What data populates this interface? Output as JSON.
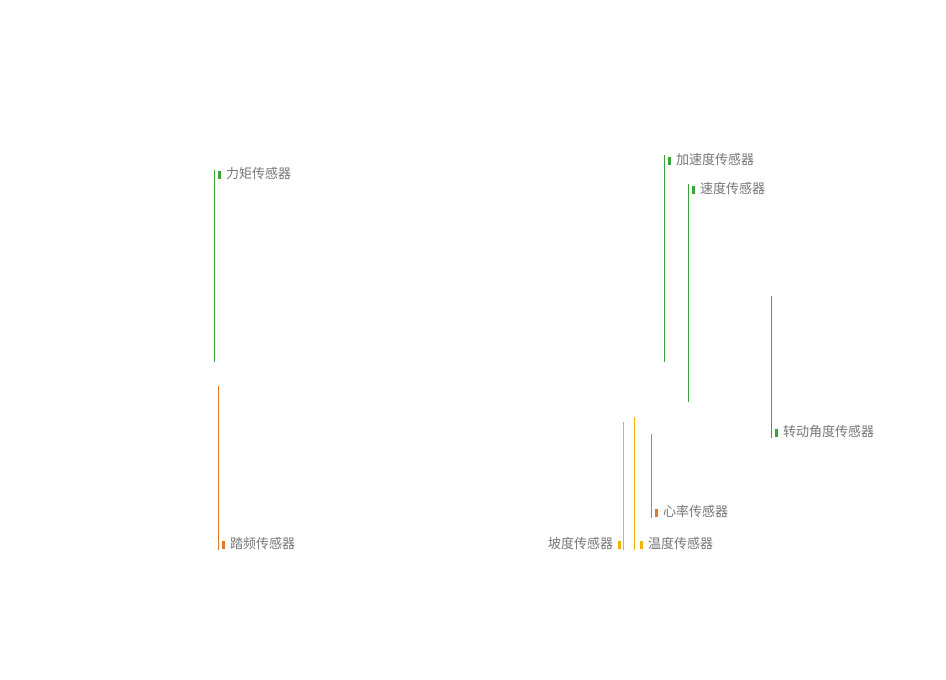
{
  "colors": {
    "green": "#3aa33a",
    "orange": "#e0782a",
    "yellow": "#f0b400",
    "text": "#777777"
  },
  "sensors": {
    "torque": {
      "label": "力矩传感器",
      "color_group": "green"
    },
    "cadence": {
      "label": "踏频传感器",
      "color_group": "orange"
    },
    "acceleration": {
      "label": "加速度传感器",
      "color_group": "green"
    },
    "speed": {
      "label": "速度传感器",
      "color_group": "green"
    },
    "rotation_angle": {
      "label": "转动角度传感器",
      "color_group": "green"
    },
    "heart_rate": {
      "label": "心率传感器",
      "color_group": "orange"
    },
    "slope": {
      "label": "坡度传感器",
      "color_group": "yellow"
    },
    "temperature": {
      "label": "温度传感器",
      "color_group": "yellow"
    }
  }
}
